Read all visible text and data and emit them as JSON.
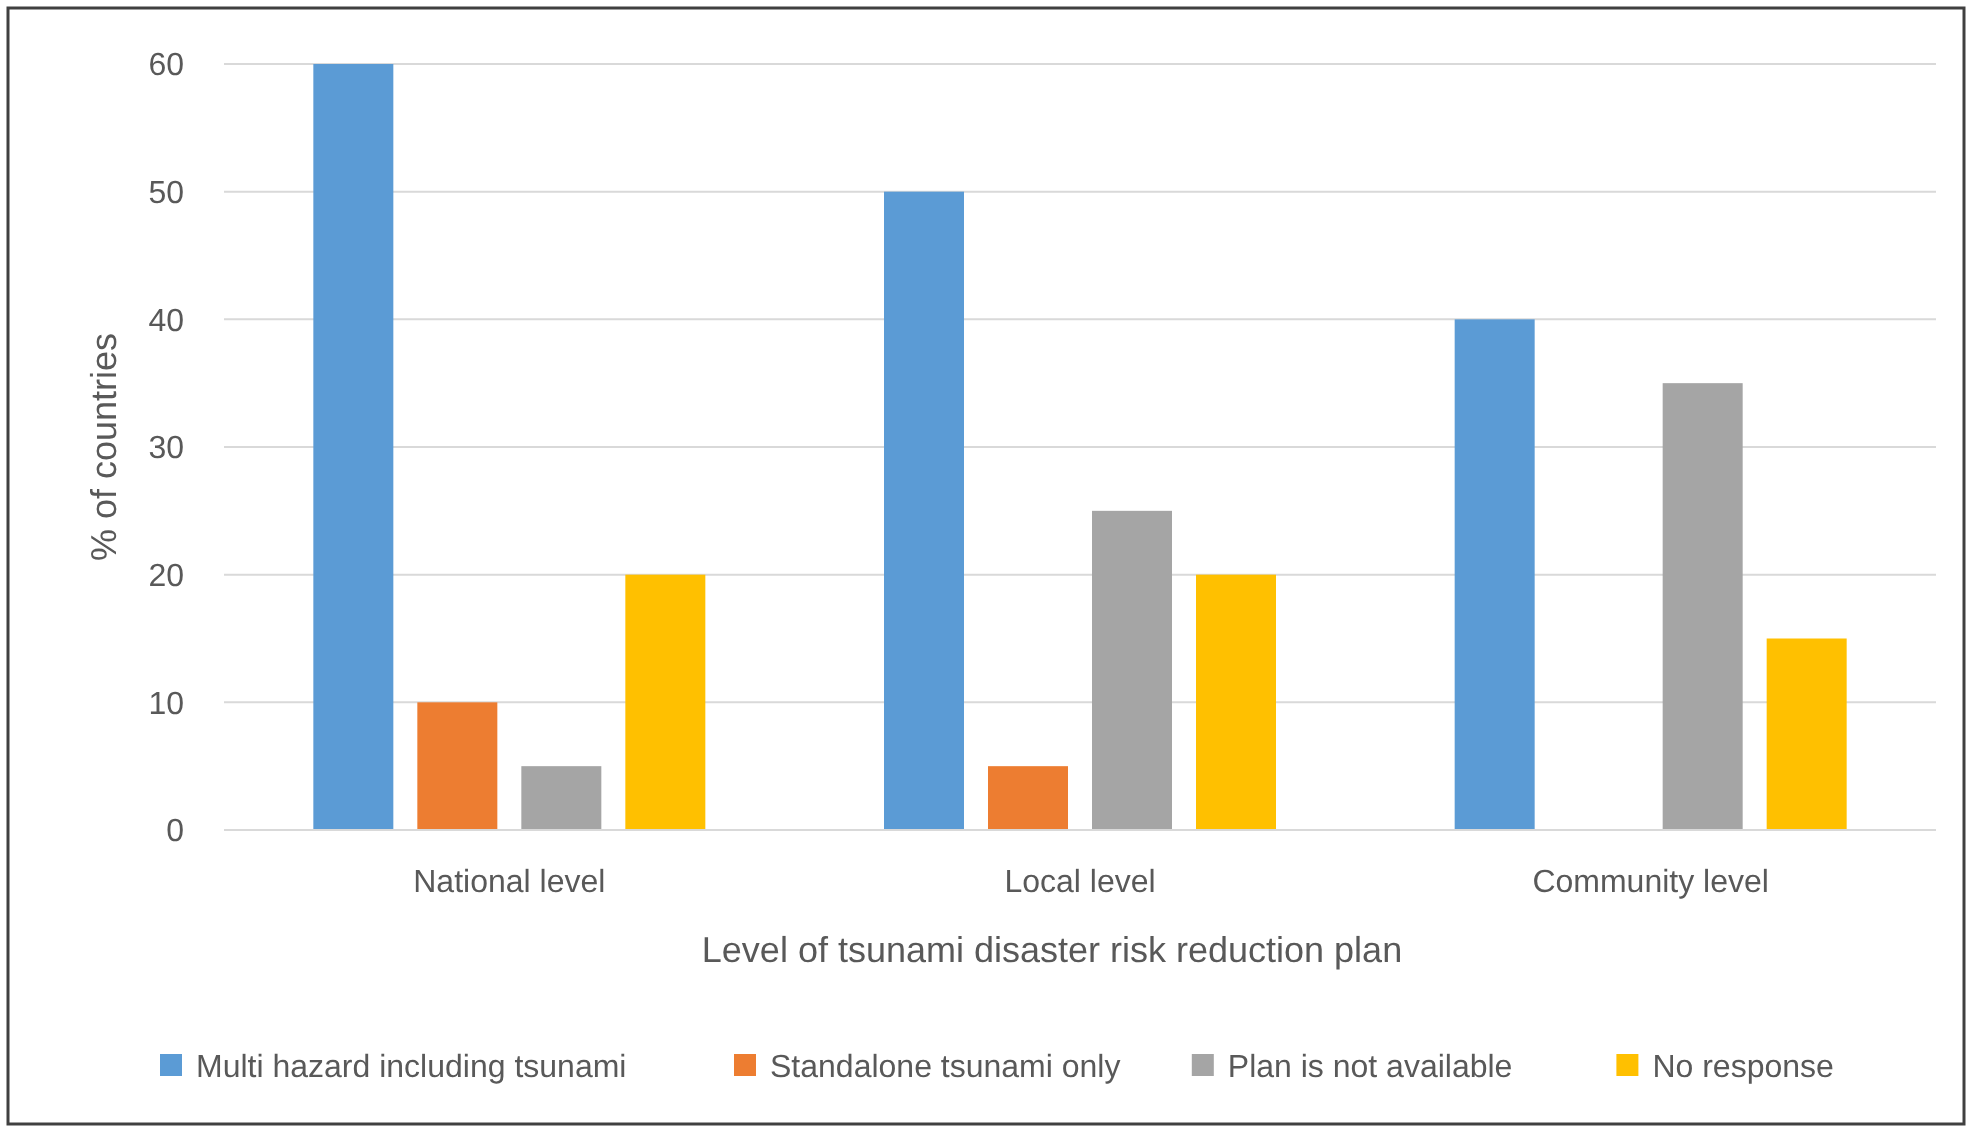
{
  "chart_data": {
    "type": "bar",
    "xlabel": "Level of tsunami disaster risk reduction plan",
    "ylabel": "% of countries",
    "categories": [
      "National level",
      "Local level",
      "Community level"
    ],
    "series": [
      {
        "name": "Multi hazard including tsunami",
        "color": "#5b9bd5",
        "values": [
          60,
          50,
          40
        ]
      },
      {
        "name": "Standalone tsunami only",
        "color": "#ed7d31",
        "values": [
          10,
          5,
          0
        ]
      },
      {
        "name": "Plan is not available",
        "color": "#a5a5a5",
        "values": [
          5,
          25,
          35
        ]
      },
      {
        "name": "No response",
        "color": "#ffc000",
        "values": [
          20,
          20,
          15
        ]
      }
    ],
    "ylim": [
      0,
      60
    ],
    "yticks": [
      0,
      10,
      20,
      30,
      40,
      50,
      60
    ],
    "grid": "y",
    "legend": "bottom"
  }
}
